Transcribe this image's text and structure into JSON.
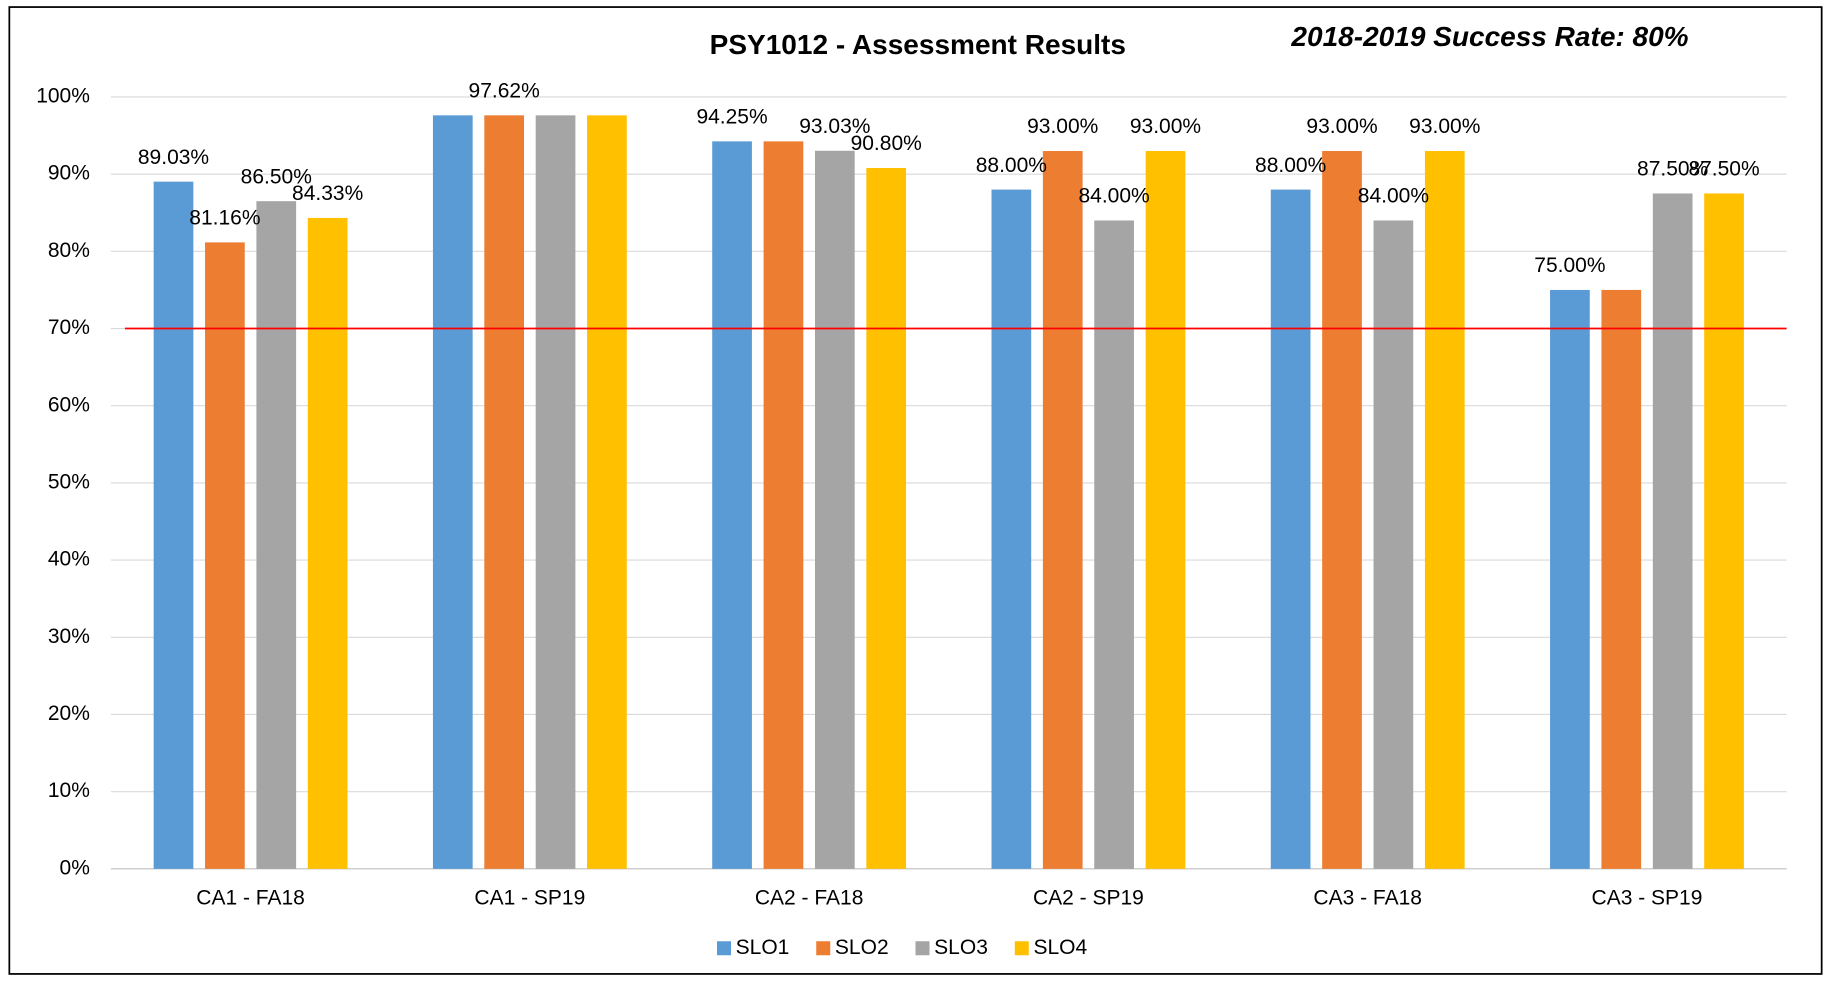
{
  "chart_data": {
    "type": "bar",
    "title": "PSY1012 - Assessment Results",
    "annotation": "2018-2019 Success Rate: 80%",
    "categories": [
      "CA1 - FA18",
      "CA1 - SP19",
      "CA2 - FA18",
      "CA2 - SP19",
      "CA3 - FA18",
      "CA3 - SP19"
    ],
    "series": [
      {
        "name": "SLO1",
        "color": "#5b9bd5",
        "values": [
          89.03,
          97.62,
          94.25,
          88.0,
          88.0,
          75.0
        ],
        "value_labels": [
          "89.03%",
          null,
          "94.25%",
          "88.00%",
          "88.00%",
          "75.00%"
        ]
      },
      {
        "name": "SLO2",
        "color": "#ed7d31",
        "values": [
          81.16,
          97.62,
          94.25,
          93.0,
          93.0,
          75.0
        ],
        "value_labels": [
          "81.16%",
          "97.62%",
          null,
          "93.00%",
          "93.00%",
          null
        ]
      },
      {
        "name": "SLO3",
        "color": "#a5a5a5",
        "values": [
          86.5,
          97.62,
          93.03,
          84.0,
          84.0,
          87.5
        ],
        "value_labels": [
          "86.50%",
          null,
          "93.03%",
          "84.00%",
          "84.00%",
          "87.50%"
        ]
      },
      {
        "name": "SLO4",
        "color": "#ffc000",
        "values": [
          84.33,
          97.62,
          90.8,
          93.0,
          93.0,
          87.5
        ],
        "value_labels": [
          "84.33%",
          null,
          "90.80%",
          "93.00%",
          "93.00%",
          "87.50%"
        ]
      }
    ],
    "ylim": [
      0,
      100
    ],
    "yticks": [
      {
        "value": 0,
        "label": "0%"
      },
      {
        "value": 10,
        "label": "10%"
      },
      {
        "value": 20,
        "label": "20%"
      },
      {
        "value": 30,
        "label": "30%"
      },
      {
        "value": 40,
        "label": "40%"
      },
      {
        "value": 50,
        "label": "50%"
      },
      {
        "value": 60,
        "label": "60%"
      },
      {
        "value": 70,
        "label": "70%"
      },
      {
        "value": 80,
        "label": "80%"
      },
      {
        "value": 90,
        "label": "90%"
      },
      {
        "value": 100,
        "label": "100%"
      }
    ],
    "reference_line": {
      "value": 70,
      "color": "#ff0000"
    },
    "grid": true,
    "legend": "bottom"
  }
}
